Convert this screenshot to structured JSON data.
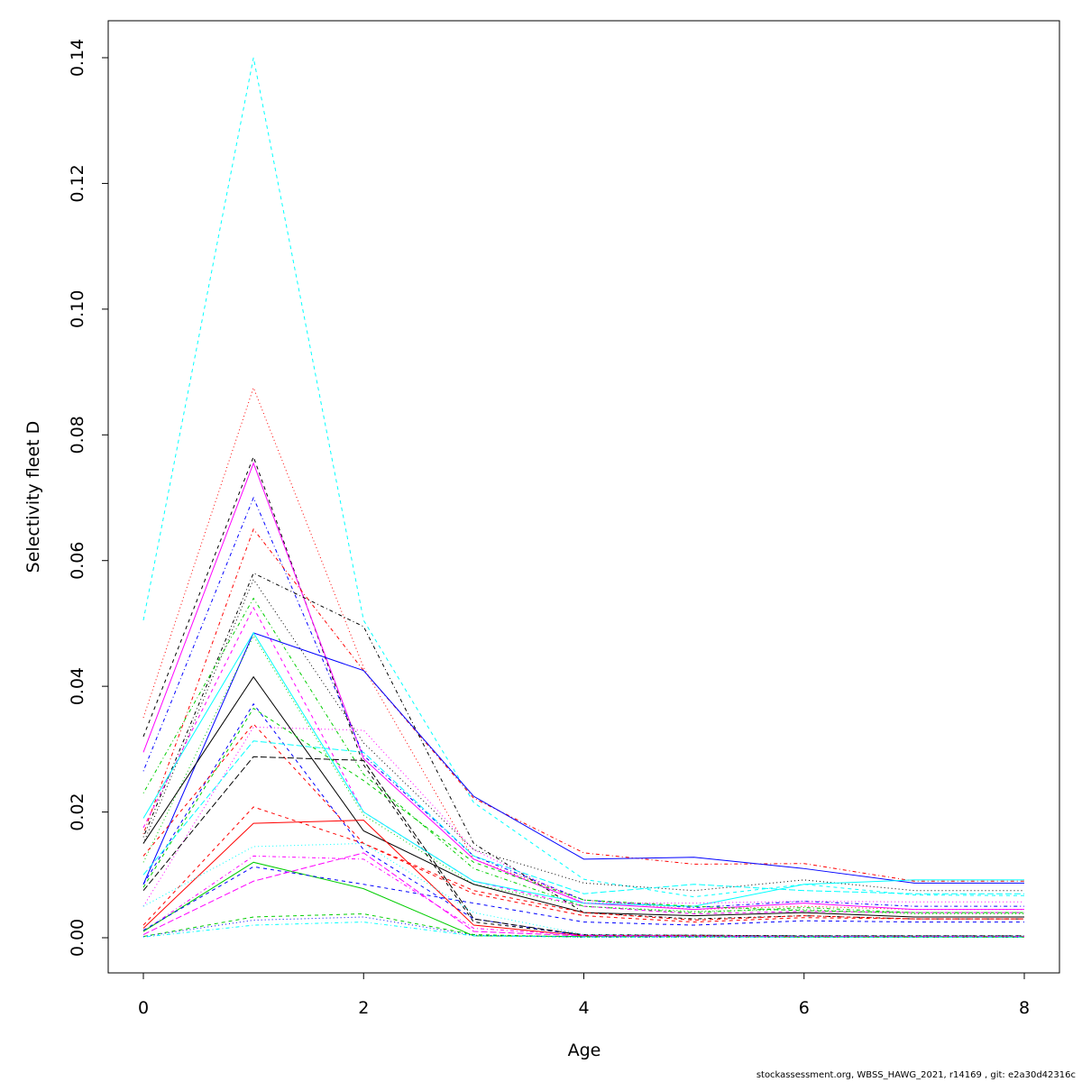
{
  "chart_data": {
    "type": "line",
    "title": "",
    "xlabel": "Age",
    "ylabel": "Selectivity fleet D",
    "xlim": [
      0,
      8
    ],
    "ylim": [
      0,
      0.14
    ],
    "x": [
      0,
      1,
      2,
      3,
      4,
      5,
      6,
      7,
      8
    ],
    "xticks": [
      "0",
      "2",
      "4",
      "6",
      "8"
    ],
    "yticks": [
      "0.00",
      "0.02",
      "0.04",
      "0.06",
      "0.08",
      "0.10",
      "0.12",
      "0.14"
    ],
    "grid": false,
    "legend": "none",
    "series": [
      {
        "color": "#00FFFF",
        "lty": "dashed",
        "values": [
          0.0505,
          0.14,
          0.0505,
          0.0215,
          0.0093,
          0.0065,
          0.0085,
          0.0068,
          0.0067
        ]
      },
      {
        "color": "#FF0000",
        "lty": "dotted",
        "values": [
          0.035,
          0.0875,
          0.043,
          0.0125,
          0.006,
          0.0045,
          0.005,
          0.0045,
          0.0045
        ]
      },
      {
        "color": "#000000",
        "lty": "dashed",
        "values": [
          0.032,
          0.0765,
          0.0275,
          0.0025,
          0.0005,
          0.0004,
          0.0003,
          0.0003,
          0.0003
        ]
      },
      {
        "color": "#FF00FF",
        "lty": "solid",
        "values": [
          0.0295,
          0.0755,
          0.0285,
          0.0125,
          0.0055,
          0.0045,
          0.0055,
          0.0045,
          0.0045
        ]
      },
      {
        "color": "#0000FF",
        "lty": "dotdash",
        "values": [
          0.0265,
          0.07,
          0.029,
          0.013,
          0.006,
          0.0048,
          0.0058,
          0.005,
          0.005
        ]
      },
      {
        "color": "#FF0000",
        "lty": "dotdash",
        "values": [
          0.0165,
          0.065,
          0.0425,
          0.0222,
          0.0135,
          0.0117,
          0.0118,
          0.009,
          0.009
        ]
      },
      {
        "color": "#000000",
        "lty": "dotdash",
        "values": [
          0.016,
          0.058,
          0.0495,
          0.015,
          0.004,
          0.003,
          0.0035,
          0.003,
          0.003
        ]
      },
      {
        "color": "#000000",
        "lty": "dotted",
        "values": [
          0.015,
          0.057,
          0.031,
          0.014,
          0.0087,
          0.0075,
          0.0092,
          0.0075,
          0.0075
        ]
      },
      {
        "color": "#00CD00",
        "lty": "dotdash",
        "values": [
          0.023,
          0.054,
          0.026,
          0.011,
          0.005,
          0.004,
          0.0048,
          0.004,
          0.004
        ]
      },
      {
        "color": "#FF00FF",
        "lty": "dashed",
        "values": [
          0.0175,
          0.0525,
          0.02,
          0.009,
          0.005,
          0.0038,
          0.0042,
          0.004,
          0.004
        ]
      },
      {
        "color": "#0000FF",
        "lty": "solid",
        "values": [
          0.0085,
          0.0485,
          0.0425,
          0.0225,
          0.0125,
          0.0128,
          0.011,
          0.0087,
          0.0087
        ]
      },
      {
        "color": "#00FFFF",
        "lty": "solid",
        "values": [
          0.019,
          0.0485,
          0.02,
          0.009,
          0.0055,
          0.005,
          0.0085,
          0.0092,
          0.0092
        ]
      },
      {
        "color": "#00CD00",
        "lty": "dotted",
        "values": [
          0.012,
          0.048,
          0.0195,
          0.0085,
          0.005,
          0.0042,
          0.0045,
          0.0038,
          0.0038
        ]
      },
      {
        "color": "#000000",
        "lty": "solid",
        "values": [
          0.015,
          0.0415,
          0.017,
          0.0085,
          0.004,
          0.0035,
          0.004,
          0.0033,
          0.0033
        ]
      },
      {
        "color": "#0000FF",
        "lty": "dashed",
        "values": [
          0.0085,
          0.0372,
          0.014,
          0.003,
          0.0003,
          0.0003,
          0.0002,
          0.0002,
          0.0002
        ]
      },
      {
        "color": "#00CD00",
        "lty": "dashed",
        "values": [
          0.008,
          0.0365,
          0.025,
          0.012,
          0.006,
          0.005,
          0.0043,
          0.004,
          0.004
        ]
      },
      {
        "color": "#FF0000",
        "lty": "dashed",
        "values": [
          0.013,
          0.034,
          0.015,
          0.0075,
          0.004,
          0.0028,
          0.0035,
          0.003,
          0.003
        ]
      },
      {
        "color": "#FF00FF",
        "lty": "dotted",
        "values": [
          0.005,
          0.0335,
          0.033,
          0.014,
          0.0055,
          0.0055,
          0.0058,
          0.0057,
          0.0057
        ]
      },
      {
        "color": "#00FFFF",
        "lty": "longdash",
        "values": [
          0.01,
          0.0313,
          0.0295,
          0.013,
          0.007,
          0.0085,
          0.0075,
          0.007,
          0.007
        ]
      },
      {
        "color": "#000000",
        "lty": "longdash",
        "values": [
          0.0075,
          0.0288,
          0.0282,
          0.003,
          0.0004,
          0.0004,
          0.0003,
          0.0003,
          0.0003
        ]
      },
      {
        "color": "#FF0000",
        "lty": "dashed",
        "values": [
          0.002,
          0.0208,
          0.015,
          0.007,
          0.0035,
          0.0025,
          0.0032,
          0.003,
          0.003
        ]
      },
      {
        "color": "#FF0000",
        "lty": "solid",
        "values": [
          0.0015,
          0.0182,
          0.0187,
          0.002,
          0.0003,
          0.0003,
          0.0002,
          0.0002,
          0.0002
        ]
      },
      {
        "color": "#00FFFF",
        "lty": "dotted",
        "values": [
          0.005,
          0.0145,
          0.015,
          0.004,
          0.0005,
          0.0004,
          0.0003,
          0.0003,
          0.0003
        ]
      },
      {
        "color": "#FF00FF",
        "lty": "dotdash",
        "values": [
          0.001,
          0.013,
          0.0125,
          0.0015,
          0.0004,
          0.0003,
          0.0002,
          0.0002,
          0.0002
        ]
      },
      {
        "color": "#00CD00",
        "lty": "solid",
        "values": [
          0.001,
          0.012,
          0.0078,
          0.0003,
          0.0002,
          0.0002,
          0.0001,
          0.0001,
          0.0001
        ]
      },
      {
        "color": "#0000FF",
        "lty": "dashed",
        "values": [
          0.0012,
          0.0113,
          0.0085,
          0.0055,
          0.0025,
          0.002,
          0.0027,
          0.0025,
          0.0025
        ]
      },
      {
        "color": "#FF00FF",
        "lty": "longdash",
        "values": [
          0.0005,
          0.009,
          0.0135,
          0.001,
          0.0003,
          0.0002,
          0.0002,
          0.0002,
          0.0002
        ]
      },
      {
        "color": "#00CD00",
        "lty": "dashed",
        "values": [
          0.0002,
          0.0033,
          0.0038,
          0.0005,
          0.0001,
          0.0001,
          0.0001,
          0.0001,
          0.0001
        ]
      },
      {
        "color": "#0000FF",
        "lty": "dotted",
        "values": [
          0.0002,
          0.0028,
          0.0033,
          0.0004,
          0.0001,
          0.0001,
          0.0001,
          0.0001,
          0.0001
        ]
      },
      {
        "color": "#00FFFF",
        "lty": "dotdash",
        "values": [
          0.0001,
          0.002,
          0.0025,
          0.0003,
          0.0001,
          0.0001,
          0.0001,
          0.0001,
          0.0001
        ]
      }
    ]
  },
  "footer": "stockassessment.org, WBSS_HAWG_2021, r14169 , git: e2a30d42316c"
}
